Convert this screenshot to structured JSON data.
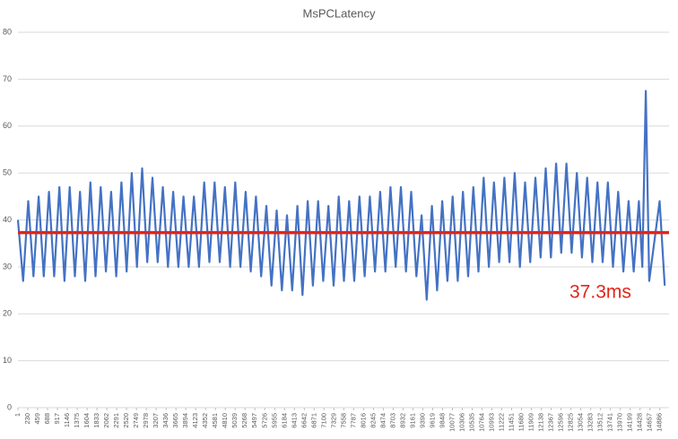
{
  "chart_data": {
    "type": "line",
    "title": "MsPCLatency",
    "color": "#4472c4",
    "x": [
      1,
      121,
      241,
      361,
      481,
      601,
      721,
      841,
      961,
      1081,
      1201,
      1321,
      1441,
      1561,
      1681,
      1801,
      1921,
      2041,
      2161,
      2281,
      2401,
      2521,
      2641,
      2761,
      2881,
      3001,
      3121,
      3241,
      3361,
      3481,
      3601,
      3721,
      3841,
      3961,
      4081,
      4201,
      4321,
      4441,
      4561,
      4681,
      4801,
      4921,
      5041,
      5161,
      5281,
      5401,
      5521,
      5641,
      5761,
      5881,
      6001,
      6121,
      6241,
      6361,
      6481,
      6601,
      6721,
      6841,
      6961,
      7081,
      7201,
      7321,
      7441,
      7561,
      7681,
      7801,
      7921,
      8041,
      8161,
      8281,
      8401,
      8521,
      8641,
      8761,
      8881,
      9001,
      9121,
      9241,
      9361,
      9481,
      9601,
      9721,
      9841,
      9961,
      10081,
      10201,
      10321,
      10441,
      10561,
      10681,
      10801,
      10921,
      11041,
      11161,
      11281,
      11401,
      11521,
      11641,
      11761,
      11881,
      12001,
      12121,
      12241,
      12361,
      12481,
      12601,
      12721,
      12841,
      12961,
      13081,
      13201,
      13321,
      13441,
      13561,
      13681,
      13801,
      13921,
      14041,
      14161,
      14281,
      14401,
      14481,
      14561,
      14641,
      14881,
      15001
    ],
    "values": [
      40,
      27,
      44,
      28,
      45,
      28,
      46,
      28,
      47,
      27,
      47,
      28,
      46,
      27,
      48,
      28,
      47,
      29,
      46,
      28,
      48,
      29,
      50,
      30,
      51,
      31,
      49,
      31,
      47,
      30,
      46,
      30,
      45,
      30,
      45,
      30,
      48,
      31,
      48,
      31,
      47,
      30,
      48,
      30,
      46,
      29,
      45,
      28,
      43,
      26,
      42,
      25,
      41,
      25,
      43,
      24,
      44,
      26,
      44,
      27,
      43,
      26,
      45,
      27,
      44,
      27,
      45,
      28,
      45,
      29,
      46,
      29,
      47,
      30,
      47,
      29,
      46,
      28,
      41,
      23,
      43,
      25,
      44,
      27,
      45,
      27,
      46,
      28,
      47,
      29,
      49,
      30,
      48,
      31,
      49,
      31,
      50,
      30,
      48,
      31,
      49,
      32,
      51,
      32,
      52,
      33,
      52,
      33,
      50,
      32,
      49,
      31,
      48,
      31,
      48,
      30,
      46,
      29,
      44,
      29,
      44,
      30,
      67.5,
      27,
      44,
      26
    ],
    "xlim": [
      1,
      15100
    ],
    "xticks": [
      1,
      230,
      459,
      688,
      917,
      1146,
      1375,
      1604,
      1833,
      2062,
      2291,
      2520,
      2749,
      2978,
      3207,
      3436,
      3665,
      3894,
      4123,
      4352,
      4581,
      4810,
      5039,
      5268,
      5497,
      5726,
      5955,
      6184,
      6413,
      6642,
      6871,
      7100,
      7329,
      7558,
      7787,
      8016,
      8245,
      8474,
      8703,
      8932,
      9161,
      9390,
      9619,
      9848,
      10077,
      10306,
      10535,
      10764,
      10993,
      11222,
      11451,
      11680,
      11909,
      12138,
      12367,
      12596,
      12825,
      13054,
      13283,
      13512,
      13741,
      13970,
      14199,
      14428,
      14657,
      14886
    ],
    "ylim": [
      0,
      80
    ],
    "yticks": [
      0,
      10,
      20,
      30,
      40,
      50,
      60,
      70,
      80
    ],
    "grid": true,
    "reference_line": {
      "value": 37.3,
      "label": "37.3ms",
      "color": "#e0251b"
    }
  }
}
